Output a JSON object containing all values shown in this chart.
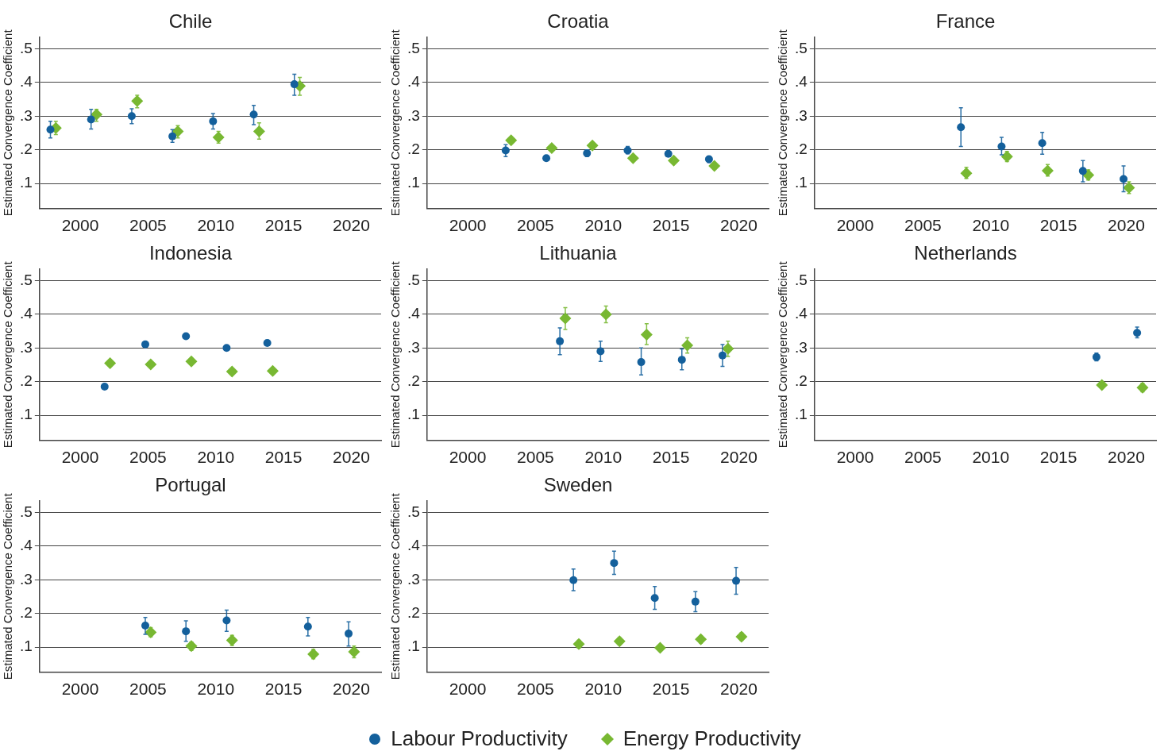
{
  "chart_data": [
    {
      "type": "scatter",
      "title": "Chile",
      "ylabel": "Estimated Convergence Coefficient",
      "xlim": [
        1997,
        2022.2
      ],
      "xticks": [
        2000,
        2005,
        2010,
        2015,
        2020
      ],
      "ylim": [
        0.025,
        0.535
      ],
      "yticks": [
        {
          "value": 0.1,
          "label": ".1"
        },
        {
          "value": 0.2,
          "label": ".2"
        },
        {
          "value": 0.3,
          "label": ".3"
        },
        {
          "value": 0.4,
          "label": ".4"
        },
        {
          "value": 0.5,
          "label": ".5"
        }
      ],
      "grid": "y",
      "legend": "bottom",
      "series": [
        {
          "name": "Labour Productivity",
          "color": "#14609c",
          "marker": "circle",
          "x": [
            1997.8,
            2000.8,
            2003.8,
            2006.8,
            2009.8,
            2012.8,
            2015.8
          ],
          "values": [
            0.26,
            0.29,
            0.3,
            0.24,
            0.285,
            0.305,
            0.395
          ],
          "errors": [
            [
              0.235,
              0.285
            ],
            [
              0.262,
              0.32
            ],
            [
              0.278,
              0.322
            ],
            [
              0.222,
              0.26
            ],
            [
              0.262,
              0.308
            ],
            [
              0.275,
              0.332
            ],
            [
              0.362,
              0.425
            ]
          ]
        },
        {
          "name": "Energy Productivity",
          "color": "#78b832",
          "marker": "diamond",
          "x": [
            1998.2,
            2001.2,
            2004.2,
            2007.2,
            2010.2,
            2013.2,
            2016.2
          ],
          "values": [
            0.265,
            0.305,
            0.345,
            0.255,
            0.237,
            0.255,
            0.39
          ],
          "errors": [
            [
              0.245,
              0.285
            ],
            [
              0.285,
              0.32
            ],
            [
              0.325,
              0.362
            ],
            [
              0.235,
              0.272
            ],
            [
              0.22,
              0.255
            ],
            [
              0.232,
              0.28
            ],
            [
              0.362,
              0.415
            ]
          ]
        }
      ]
    },
    {
      "type": "scatter",
      "title": "Croatia",
      "ylabel": "Estimated Convergence Coefficient",
      "xlim": [
        1997,
        2022.2
      ],
      "xticks": [
        2000,
        2005,
        2010,
        2015,
        2020
      ],
      "ylim": [
        0.025,
        0.535
      ],
      "yticks": [
        {
          "value": 0.1,
          "label": ".1"
        },
        {
          "value": 0.2,
          "label": ".2"
        },
        {
          "value": 0.3,
          "label": ".3"
        },
        {
          "value": 0.4,
          "label": ".4"
        },
        {
          "value": 0.5,
          "label": ".5"
        }
      ],
      "grid": "y",
      "series": [
        {
          "color": "#14609c",
          "marker": "circle",
          "x": [
            2002.8,
            2005.8,
            2008.8,
            2011.8,
            2014.8,
            2017.8
          ],
          "values": [
            0.198,
            0.175,
            0.19,
            0.198,
            0.188,
            0.172
          ],
          "errors": [
            [
              0.18,
              0.215
            ],
            null,
            [
              0.18,
              0.2
            ],
            [
              0.188,
              0.21
            ],
            [
              0.18,
              0.196
            ],
            [
              0.162,
              0.18
            ]
          ]
        },
        {
          "color": "#78b832",
          "marker": "diamond",
          "x": [
            2003.2,
            2006.2,
            2009.2,
            2012.2,
            2015.2,
            2018.2
          ],
          "values": [
            0.228,
            0.205,
            0.213,
            0.175,
            0.168,
            0.152
          ]
        }
      ]
    },
    {
      "type": "scatter",
      "title": "France",
      "ylabel": "Estimated Convergence Coefficient",
      "xlim": [
        1997,
        2022.2
      ],
      "xticks": [
        2000,
        2005,
        2010,
        2015,
        2020
      ],
      "ylim": [
        0.025,
        0.535
      ],
      "yticks": [
        {
          "value": 0.1,
          "label": ".1"
        },
        {
          "value": 0.2,
          "label": ".2"
        },
        {
          "value": 0.3,
          "label": ".3"
        },
        {
          "value": 0.4,
          "label": ".4"
        },
        {
          "value": 0.5,
          "label": ".5"
        }
      ],
      "grid": "y",
      "series": [
        {
          "color": "#14609c",
          "marker": "circle",
          "x": [
            2007.8,
            2010.8,
            2013.8,
            2016.8,
            2019.8
          ],
          "values": [
            0.267,
            0.21,
            0.22,
            0.137,
            0.113
          ],
          "errors": [
            [
              0.21,
              0.325
            ],
            [
              0.185,
              0.237
            ],
            [
              0.187,
              0.252
            ],
            [
              0.105,
              0.168
            ],
            [
              0.075,
              0.152
            ]
          ]
        },
        {
          "color": "#78b832",
          "marker": "diamond",
          "x": [
            2008.2,
            2011.2,
            2014.2,
            2017.2,
            2020.2
          ],
          "values": [
            0.13,
            0.18,
            0.138,
            0.125,
            0.087
          ],
          "errors": [
            [
              0.115,
              0.148
            ],
            [
              0.165,
              0.195
            ],
            [
              0.122,
              0.156
            ],
            [
              0.11,
              0.14
            ],
            [
              0.07,
              0.105
            ]
          ]
        }
      ]
    },
    {
      "type": "scatter",
      "title": "Indonesia",
      "ylabel": "Estimated Convergence Coefficient",
      "xlim": [
        1997,
        2022.2
      ],
      "xticks": [
        2000,
        2005,
        2010,
        2015,
        2020
      ],
      "ylim": [
        0.025,
        0.535
      ],
      "yticks": [
        {
          "value": 0.1,
          "label": ".1"
        },
        {
          "value": 0.2,
          "label": ".2"
        },
        {
          "value": 0.3,
          "label": ".3"
        },
        {
          "value": 0.4,
          "label": ".4"
        },
        {
          "value": 0.5,
          "label": ".5"
        }
      ],
      "grid": "y",
      "series": [
        {
          "color": "#14609c",
          "marker": "circle",
          "x": [
            2001.8,
            2004.8,
            2007.8,
            2010.8,
            2013.8
          ],
          "values": [
            0.185,
            0.311,
            0.335,
            0.3,
            0.315
          ]
        },
        {
          "color": "#78b832",
          "marker": "diamond",
          "x": [
            2002.2,
            2005.2,
            2008.2,
            2011.2,
            2014.2
          ],
          "values": [
            0.255,
            0.251,
            0.26,
            0.23,
            0.232
          ]
        }
      ]
    },
    {
      "type": "scatter",
      "title": "Lithuania",
      "ylabel": "Estimated Convergence Coefficient",
      "xlim": [
        1997,
        2022.2
      ],
      "xticks": [
        2000,
        2005,
        2010,
        2015,
        2020
      ],
      "ylim": [
        0.025,
        0.535
      ],
      "yticks": [
        {
          "value": 0.1,
          "label": ".1"
        },
        {
          "value": 0.2,
          "label": ".2"
        },
        {
          "value": 0.3,
          "label": ".3"
        },
        {
          "value": 0.4,
          "label": ".4"
        },
        {
          "value": 0.5,
          "label": ".5"
        }
      ],
      "grid": "y",
      "series": [
        {
          "color": "#14609c",
          "marker": "circle",
          "x": [
            2006.8,
            2009.8,
            2012.8,
            2015.8,
            2018.8
          ],
          "values": [
            0.32,
            0.29,
            0.258,
            0.265,
            0.278
          ],
          "errors": [
            [
              0.28,
              0.36
            ],
            [
              0.26,
              0.32
            ],
            [
              0.22,
              0.3
            ],
            [
              0.235,
              0.297
            ],
            [
              0.245,
              0.31
            ]
          ]
        },
        {
          "color": "#78b832",
          "marker": "diamond",
          "x": [
            2007.2,
            2010.2,
            2013.2,
            2016.2,
            2019.2
          ],
          "values": [
            0.388,
            0.4,
            0.34,
            0.308,
            0.298
          ],
          "errors": [
            [
              0.355,
              0.42
            ],
            [
              0.375,
              0.425
            ],
            [
              0.31,
              0.372
            ],
            [
              0.285,
              0.33
            ],
            [
              0.275,
              0.32
            ]
          ]
        }
      ]
    },
    {
      "type": "scatter",
      "title": "Netherlands",
      "ylabel": "Estimated Convergence Coefficient",
      "xlim": [
        1997,
        2022.2
      ],
      "xticks": [
        2000,
        2005,
        2010,
        2015,
        2020
      ],
      "ylim": [
        0.025,
        0.535
      ],
      "yticks": [
        {
          "value": 0.1,
          "label": ".1"
        },
        {
          "value": 0.2,
          "label": ".2"
        },
        {
          "value": 0.3,
          "label": ".3"
        },
        {
          "value": 0.4,
          "label": ".4"
        },
        {
          "value": 0.5,
          "label": ".5"
        }
      ],
      "grid": "y",
      "series": [
        {
          "color": "#14609c",
          "marker": "circle",
          "x": [
            2017.8,
            2020.8
          ],
          "values": [
            0.273,
            0.345
          ],
          "errors": [
            [
              0.262,
              0.285
            ],
            [
              0.33,
              0.362
            ]
          ]
        },
        {
          "color": "#78b832",
          "marker": "diamond",
          "x": [
            2018.2,
            2021.2
          ],
          "values": [
            0.19,
            0.182
          ],
          "errors": [
            null,
            [
              0.17,
              0.195
            ]
          ]
        }
      ]
    },
    {
      "type": "scatter",
      "title": "Portugal",
      "ylabel": "Estimated Convergence Coefficient",
      "xlim": [
        1997,
        2022.2
      ],
      "xticks": [
        2000,
        2005,
        2010,
        2015,
        2020
      ],
      "ylim": [
        0.025,
        0.535
      ],
      "yticks": [
        {
          "value": 0.1,
          "label": ".1"
        },
        {
          "value": 0.2,
          "label": ".2"
        },
        {
          "value": 0.3,
          "label": ".3"
        },
        {
          "value": 0.4,
          "label": ".4"
        },
        {
          "value": 0.5,
          "label": ".5"
        }
      ],
      "grid": "y",
      "series": [
        {
          "color": "#14609c",
          "marker": "circle",
          "x": [
            2004.8,
            2007.8,
            2010.8,
            2016.8,
            2019.8
          ],
          "values": [
            0.164,
            0.147,
            0.179,
            0.161,
            0.14
          ],
          "errors": [
            [
              0.138,
              0.188
            ],
            [
              0.117,
              0.178
            ],
            [
              0.147,
              0.21
            ],
            [
              0.133,
              0.188
            ],
            [
              0.103,
              0.175
            ]
          ]
        },
        {
          "color": "#78b832",
          "marker": "diamond",
          "x": [
            2005.2,
            2008.2,
            2011.2,
            2017.2,
            2020.2
          ],
          "values": [
            0.144,
            0.103,
            0.12,
            0.079,
            0.086
          ],
          "errors": [
            [
              0.13,
              0.158
            ],
            [
              0.09,
              0.115
            ],
            [
              0.105,
              0.135
            ],
            [
              0.065,
              0.093
            ],
            [
              0.068,
              0.103
            ]
          ]
        }
      ]
    },
    {
      "type": "scatter",
      "title": "Sweden",
      "ylabel": "Estimated Convergence Coefficient",
      "xlim": [
        1997,
        2022.2
      ],
      "xticks": [
        2000,
        2005,
        2010,
        2015,
        2020
      ],
      "ylim": [
        0.025,
        0.535
      ],
      "yticks": [
        {
          "value": 0.1,
          "label": ".1"
        },
        {
          "value": 0.2,
          "label": ".2"
        },
        {
          "value": 0.3,
          "label": ".3"
        },
        {
          "value": 0.4,
          "label": ".4"
        },
        {
          "value": 0.5,
          "label": ".5"
        }
      ],
      "grid": "y",
      "series": [
        {
          "color": "#14609c",
          "marker": "circle",
          "x": [
            2007.8,
            2010.8,
            2013.8,
            2016.8,
            2019.8
          ],
          "values": [
            0.299,
            0.35,
            0.246,
            0.235,
            0.297
          ],
          "errors": [
            [
              0.268,
              0.332
            ],
            [
              0.316,
              0.385
            ],
            [
              0.212,
              0.28
            ],
            [
              0.205,
              0.265
            ],
            [
              0.257,
              0.337
            ]
          ]
        },
        {
          "color": "#78b832",
          "marker": "diamond",
          "x": [
            2008.2,
            2011.2,
            2014.2,
            2017.2,
            2020.2
          ],
          "values": [
            0.109,
            0.117,
            0.098,
            0.123,
            0.131
          ],
          "errors": [
            [
              0.097,
              0.12
            ],
            [
              0.107,
              0.127
            ],
            null,
            [
              0.112,
              0.133
            ],
            [
              0.12,
              0.142
            ]
          ]
        }
      ]
    }
  ]
}
